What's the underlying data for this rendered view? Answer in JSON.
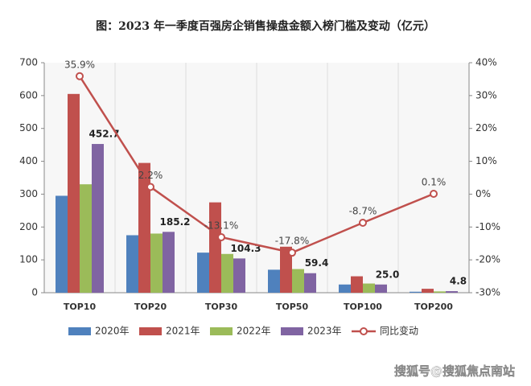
{
  "chart_data": {
    "type": "bar",
    "title": "图：2023 年一季度百强房企销售操盘金额入榜门槛及变动（亿元）",
    "categories": [
      "TOP10",
      "TOP20",
      "TOP30",
      "TOP50",
      "TOP100",
      "TOP200"
    ],
    "series": [
      {
        "name": "2020年",
        "color": "#4f81bd",
        "values": [
          295,
          175,
          122,
          70,
          25,
          3
        ]
      },
      {
        "name": "2021年",
        "color": "#c0504d",
        "values": [
          605,
          395,
          275,
          140,
          50,
          12
        ]
      },
      {
        "name": "2022年",
        "color": "#9bbb59",
        "values": [
          330,
          180,
          118,
          72,
          28,
          4
        ]
      },
      {
        "name": "2023年",
        "color": "#8064a2",
        "values": [
          452.7,
          185.2,
          104.3,
          59.4,
          25.0,
          4.8
        ],
        "value_labels": [
          "452.7",
          "185.2",
          "104.3",
          "59.4",
          "25.0",
          "4.8"
        ]
      },
      {
        "name": "同比变动",
        "type": "line",
        "axis": "y2",
        "color": "#c0504d",
        "values": [
          35.9,
          2.2,
          -13.1,
          -17.8,
          -8.7,
          0.1
        ],
        "value_labels": [
          "35.9%",
          "2.2%",
          "-13.1%",
          "-17.8%",
          "-8.7%",
          "0.1%"
        ]
      }
    ],
    "ylim": [
      0,
      700
    ],
    "yticks": [
      0,
      100,
      200,
      300,
      400,
      500,
      600,
      700
    ],
    "y2lim": [
      -30,
      40
    ],
    "y2ticks": [
      {
        "value": -30,
        "label": "-30%"
      },
      {
        "value": -20,
        "label": "-20%"
      },
      {
        "value": -10,
        "label": "-10%"
      },
      {
        "value": 0,
        "label": "0%"
      },
      {
        "value": 10,
        "label": "10%"
      },
      {
        "value": 20,
        "label": "20%"
      },
      {
        "value": 30,
        "label": "30%"
      },
      {
        "value": 40,
        "label": "40%"
      }
    ],
    "legend": "bottom",
    "watermark": "搜狐号@搜狐焦点南站"
  }
}
